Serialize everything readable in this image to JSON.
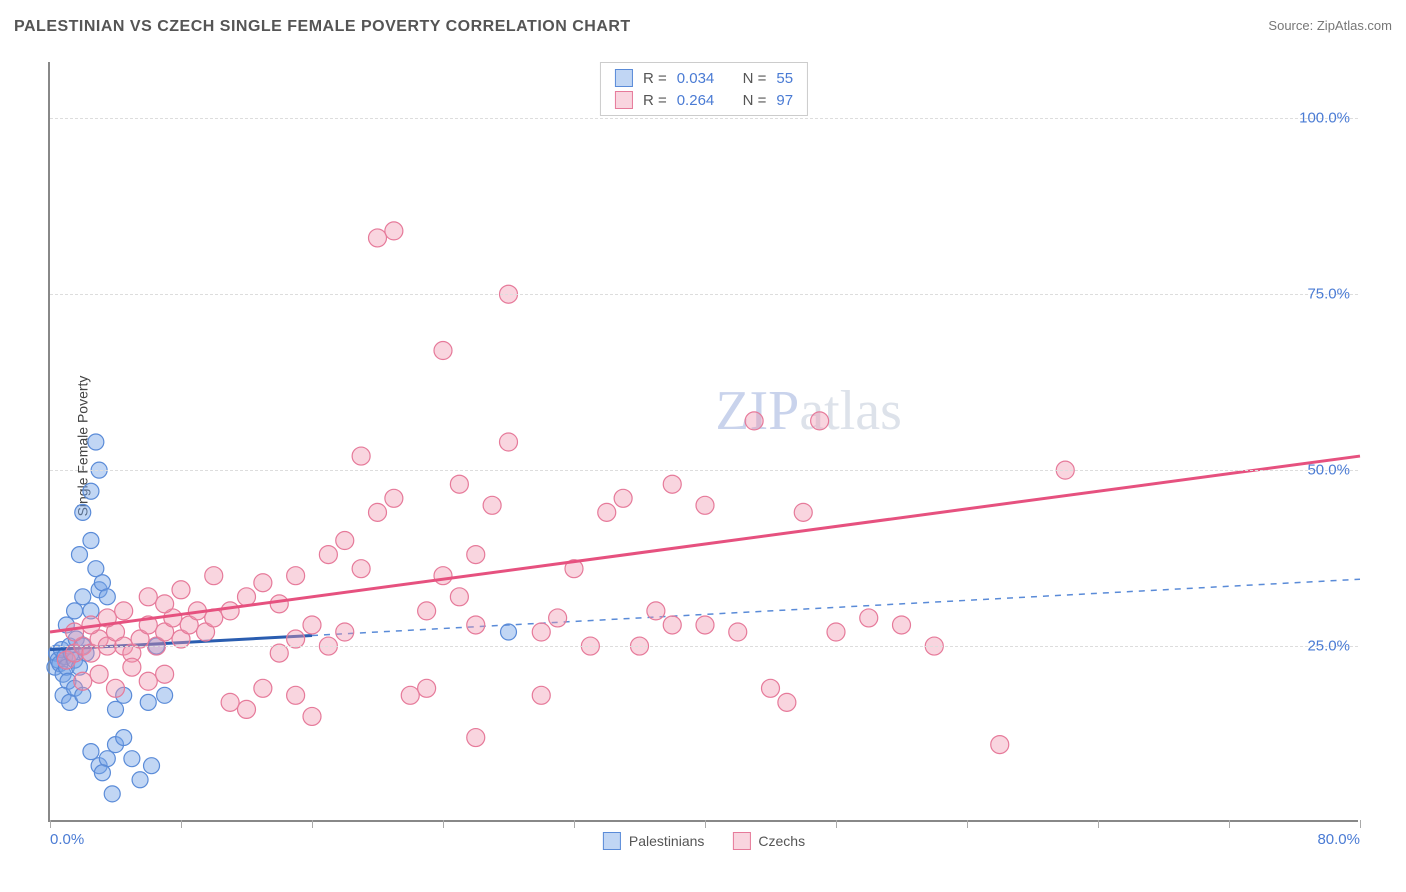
{
  "title": "PALESTINIAN VS CZECH SINGLE FEMALE POVERTY CORRELATION CHART",
  "source_label": "Source:",
  "source_name": "ZipAtlas.com",
  "ylabel": "Single Female Poverty",
  "watermark_zip": "ZIP",
  "watermark_atlas": "atlas",
  "chart": {
    "type": "scatter",
    "xlim": [
      0,
      80
    ],
    "ylim": [
      0,
      108
    ],
    "xtick_positions": [
      0,
      8,
      16,
      24,
      32,
      40,
      48,
      56,
      64,
      72,
      80
    ],
    "xtick_labels": {
      "0": "0.0%",
      "80": "80.0%"
    },
    "ytick_positions": [
      25,
      50,
      75,
      100
    ],
    "ytick_labels": [
      "25.0%",
      "50.0%",
      "75.0%",
      "100.0%"
    ],
    "grid_color": "#dddddd",
    "axis_color": "#888888",
    "tick_label_color": "#4a7bd4",
    "series": [
      {
        "key": "palestinians",
        "label": "Palestinians",
        "fill": "rgba(118,163,230,0.45)",
        "stroke": "#5a8bd8",
        "line_color": "#2a5db0",
        "line_dash_extend": "#5a8bd8",
        "marker_radius": 8,
        "R_label": "R =",
        "R": "0.034",
        "N_label": "N =",
        "N": "55",
        "trend": {
          "x1": 0,
          "y1": 24.5,
          "x2": 16,
          "y2": 26.5
        },
        "trend_extend": {
          "x1": 16,
          "y1": 26.5,
          "x2": 80,
          "y2": 34.5
        },
        "points": [
          [
            0.3,
            22
          ],
          [
            0.4,
            24
          ],
          [
            0.5,
            23
          ],
          [
            0.6,
            22.5
          ],
          [
            0.7,
            24.5
          ],
          [
            0.8,
            21
          ],
          [
            0.9,
            23.5
          ],
          [
            1.0,
            22
          ],
          [
            1.1,
            20
          ],
          [
            1.2,
            25
          ],
          [
            1.3,
            24
          ],
          [
            1.5,
            23
          ],
          [
            1.6,
            26
          ],
          [
            1.8,
            22
          ],
          [
            2.0,
            25
          ],
          [
            2.2,
            24
          ],
          [
            1.0,
            28
          ],
          [
            1.5,
            30
          ],
          [
            2.0,
            32
          ],
          [
            2.5,
            30
          ],
          [
            3.0,
            33
          ],
          [
            2.8,
            36
          ],
          [
            3.2,
            34
          ],
          [
            3.5,
            32
          ],
          [
            1.8,
            38
          ],
          [
            2.5,
            40
          ],
          [
            2.0,
            44
          ],
          [
            2.5,
            47
          ],
          [
            3.0,
            50
          ],
          [
            2.8,
            54
          ],
          [
            0.8,
            18
          ],
          [
            1.2,
            17
          ],
          [
            1.5,
            19
          ],
          [
            2.0,
            18
          ],
          [
            2.5,
            10
          ],
          [
            3.0,
            8
          ],
          [
            3.5,
            9
          ],
          [
            4.0,
            11
          ],
          [
            3.2,
            7
          ],
          [
            4.5,
            12
          ],
          [
            6.0,
            17
          ],
          [
            6.5,
            25
          ],
          [
            7.0,
            18
          ],
          [
            5.5,
            6
          ],
          [
            5.0,
            9
          ],
          [
            6.2,
            8
          ],
          [
            4.0,
            16
          ],
          [
            4.5,
            18
          ],
          [
            3.8,
            4
          ],
          [
            28,
            27
          ]
        ]
      },
      {
        "key": "czechs",
        "label": "Czechs",
        "fill": "rgba(240,150,175,0.40)",
        "stroke": "#e67a9a",
        "line_color": "#e6517f",
        "marker_radius": 9,
        "R_label": "R =",
        "R": "0.264",
        "N_label": "N =",
        "N": "97",
        "trend": {
          "x1": 0,
          "y1": 27,
          "x2": 80,
          "y2": 52
        },
        "points": [
          [
            1,
            23
          ],
          [
            1.5,
            24
          ],
          [
            2,
            25
          ],
          [
            2.5,
            24
          ],
          [
            3,
            26
          ],
          [
            3.5,
            25
          ],
          [
            4,
            27
          ],
          [
            4.5,
            25
          ],
          [
            5,
            24
          ],
          [
            5.5,
            26
          ],
          [
            6,
            28
          ],
          [
            6.5,
            25
          ],
          [
            7,
            27
          ],
          [
            7.5,
            29
          ],
          [
            8,
            26
          ],
          [
            8.5,
            28
          ],
          [
            9,
            30
          ],
          [
            9.5,
            27
          ],
          [
            10,
            29
          ],
          [
            2,
            20
          ],
          [
            3,
            21
          ],
          [
            4,
            19
          ],
          [
            5,
            22
          ],
          [
            6,
            20
          ],
          [
            7,
            21
          ],
          [
            1.5,
            27
          ],
          [
            2.5,
            28
          ],
          [
            3.5,
            29
          ],
          [
            4.5,
            30
          ],
          [
            6,
            32
          ],
          [
            7,
            31
          ],
          [
            8,
            33
          ],
          [
            10,
            35
          ],
          [
            11,
            30
          ],
          [
            12,
            32
          ],
          [
            13,
            34
          ],
          [
            14,
            31
          ],
          [
            15,
            35
          ],
          [
            11,
            17
          ],
          [
            12,
            16
          ],
          [
            13,
            19
          ],
          [
            15,
            18
          ],
          [
            16,
            15
          ],
          [
            14,
            24
          ],
          [
            15,
            26
          ],
          [
            16,
            28
          ],
          [
            17,
            25
          ],
          [
            18,
            27
          ],
          [
            17,
            38
          ],
          [
            18,
            40
          ],
          [
            19,
            36
          ],
          [
            20,
            44
          ],
          [
            21,
            46
          ],
          [
            19,
            52
          ],
          [
            20,
            83
          ],
          [
            21,
            84
          ],
          [
            24,
            67
          ],
          [
            25,
            32
          ],
          [
            26,
            38
          ],
          [
            27,
            45
          ],
          [
            28,
            54
          ],
          [
            28,
            75
          ],
          [
            22,
            18
          ],
          [
            23,
            19
          ],
          [
            24,
            35
          ],
          [
            25,
            48
          ],
          [
            26,
            28
          ],
          [
            30,
            27
          ],
          [
            31,
            29
          ],
          [
            32,
            36
          ],
          [
            33,
            25
          ],
          [
            34,
            44
          ],
          [
            35,
            46
          ],
          [
            36,
            25
          ],
          [
            37,
            30
          ],
          [
            38,
            48
          ],
          [
            40,
            45
          ],
          [
            42,
            27
          ],
          [
            43,
            57
          ],
          [
            45,
            17
          ],
          [
            46,
            44
          ],
          [
            47,
            57
          ],
          [
            48,
            27
          ],
          [
            50,
            29
          ],
          [
            52,
            28
          ],
          [
            54,
            25
          ],
          [
            44,
            19
          ],
          [
            58,
            11
          ],
          [
            62,
            50
          ],
          [
            23,
            30
          ],
          [
            26,
            12
          ],
          [
            30,
            18
          ],
          [
            38,
            28
          ],
          [
            40,
            28
          ]
        ]
      }
    ]
  }
}
